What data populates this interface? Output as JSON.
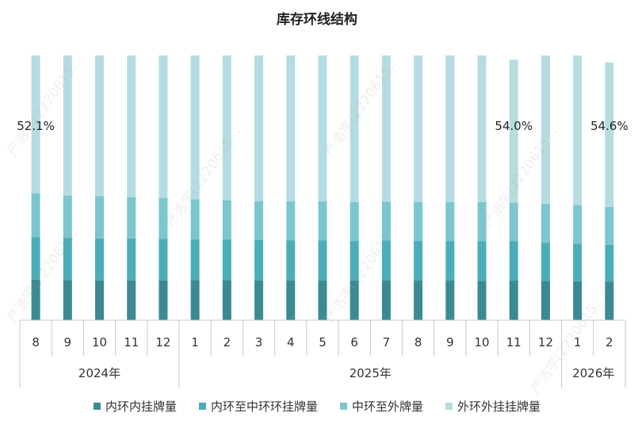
{
  "chart_data": {
    "type": "bar",
    "stacked": true,
    "percent": true,
    "title": "库存环线结构",
    "categories": [
      "8",
      "9",
      "10",
      "11",
      "12",
      "1",
      "2",
      "3",
      "4",
      "5",
      "6",
      "7",
      "8",
      "9",
      "10",
      "11",
      "12",
      "1",
      "2"
    ],
    "year_groups": [
      {
        "label": "2024年",
        "count": 5
      },
      {
        "label": "2025年",
        "count": 12
      },
      {
        "label": "2026年",
        "count": 2
      }
    ],
    "series": [
      {
        "name": "内环内挂牌量",
        "color": "#3a8a94",
        "values": [
          15.3,
          15.1,
          15.0,
          15.0,
          15.0,
          15.2,
          15.1,
          15.0,
          15.0,
          15.0,
          15.0,
          15.0,
          15.0,
          15.0,
          14.8,
          15.0,
          14.8,
          14.7,
          14.5
        ]
      },
      {
        "name": "内环至中环环挂牌量",
        "color": "#4aaeb8",
        "values": [
          16.1,
          16.0,
          15.9,
          15.9,
          15.8,
          15.3,
          15.4,
          15.3,
          15.1,
          15.1,
          15.0,
          15.1,
          15.0,
          14.9,
          15.0,
          14.8,
          14.5,
          14.2,
          14.0
        ]
      },
      {
        "name": "中环至外牌量",
        "color": "#7bc6cf",
        "values": [
          16.5,
          16.0,
          16.0,
          15.6,
          15.4,
          15.2,
          14.8,
          14.7,
          14.8,
          14.8,
          14.7,
          14.7,
          14.7,
          14.7,
          14.8,
          14.6,
          14.7,
          14.5,
          14.3
        ]
      },
      {
        "name": "外环外挂挂牌量",
        "color": "#b5dde1",
        "values": [
          52.1,
          52.9,
          53.1,
          53.5,
          53.8,
          54.3,
          54.7,
          55.0,
          55.1,
          55.1,
          55.3,
          55.2,
          55.3,
          55.4,
          55.4,
          54.0,
          56.0,
          56.6,
          54.6
        ]
      }
    ],
    "data_labels": [
      {
        "index": 0,
        "text": "52.1%"
      },
      {
        "index": 15,
        "text": "54.0%"
      },
      {
        "index": 18,
        "text": "54.6%"
      }
    ],
    "ylim": [
      0,
      100
    ]
  },
  "watermark": "严浩宇(2220615..."
}
